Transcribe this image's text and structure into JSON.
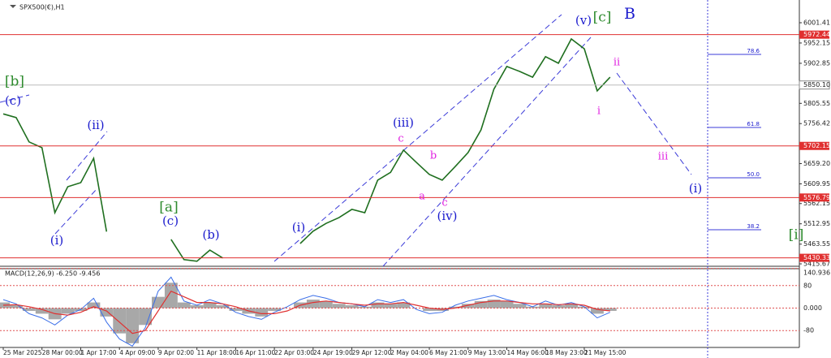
{
  "chart_data": [
    {
      "type": "line",
      "title": "SPX500(€),H1",
      "categories": [
        "25 Mar 2025",
        null,
        null,
        "28 Mar 00:00",
        null,
        null,
        "1 Apr 17:00",
        null,
        null,
        "4 Apr 09:00",
        null,
        null,
        "9 Apr 02:00",
        null,
        null,
        "11 Apr 18:00",
        null,
        null,
        "16 Apr 11:00",
        null,
        null,
        "22 Apr 03:00",
        null,
        null,
        "24 Apr 19:00",
        null,
        null,
        "29 Apr 12:00",
        null,
        null,
        "2 May 04:00",
        null,
        null,
        "6 May 21:00",
        null,
        null,
        "9 May 13:00",
        null,
        null,
        "14 May 06:00",
        null,
        null,
        "18 May 23:00",
        null,
        null,
        "21 May 15:00",
        null,
        null
      ],
      "values": [
        5780,
        5771,
        5712,
        5698,
        5540,
        5603,
        5613,
        5672,
        5494,
        null,
        null,
        null,
        null,
        5475,
        5426,
        5422,
        5449,
        5430,
        null,
        null,
        null,
        null,
        null,
        5465,
        5495,
        5514,
        5528,
        5548,
        5540,
        5619,
        5638,
        5692,
        5662,
        5633,
        5619,
        5652,
        5686,
        5741,
        5840,
        5895,
        5883,
        5869,
        5919,
        5903,
        5962,
        5938,
        5836,
        5869
      ],
      "color": "#1f6f1f",
      "ylim": [
        5409.8,
        6056.6
      ],
      "yticks": [
        6001.41,
        5952.15,
        5902.85,
        5805.55,
        5756.42,
        {
          "value": 5659.2,
          "label": "5659.20"
        },
        5609.95,
        5562.15,
        5512.95,
        5463.55,
        5415.67
      ],
      "levels": [
        5972.44,
        5702.15,
        5576.79,
        5430.33
      ],
      "level_color": "#e03030",
      "current": {
        "value": 5850.1,
        "label": "5850.10"
      },
      "fib_labels": [
        "78.6",
        "61.8",
        "50.0",
        "38.2"
      ],
      "annotations": [
        {
          "text": "[b]",
          "color": "#2e8b2e"
        },
        {
          "text": "(c)",
          "color": "#1a1acd"
        },
        {
          "text": "(ii)",
          "color": "#1a1acd"
        },
        {
          "text": "(i)",
          "color": "#1a1acd"
        },
        {
          "text": "[a]",
          "color": "#2e8b2e"
        },
        {
          "text": "(c)",
          "color": "#1a1acd"
        },
        {
          "text": "(b)",
          "color": "#1a1acd"
        },
        {
          "text": "(i)",
          "color": "#1a1acd"
        },
        {
          "text": "(iii)",
          "color": "#1a1acd"
        },
        {
          "text": "c",
          "color": "#e020e0"
        },
        {
          "text": "b",
          "color": "#e020e0"
        },
        {
          "text": "a",
          "color": "#e020e0"
        },
        {
          "text": "c",
          "color": "#e020e0"
        },
        {
          "text": "(iv)",
          "color": "#1a1acd"
        },
        {
          "text": "(v)",
          "color": "#1a1acd"
        },
        {
          "text": "[c]",
          "color": "#2e8b2e"
        },
        {
          "text": "B",
          "color": "#1a1acd"
        },
        {
          "text": "ii",
          "color": "#e020e0"
        },
        {
          "text": "i",
          "color": "#e020e0"
        },
        {
          "text": "iii",
          "color": "#e020e0"
        },
        {
          "text": "(i)",
          "color": "#1a1acd"
        },
        {
          "text": "[i]",
          "color": "#2e8b2e"
        }
      ]
    },
    {
      "type": "macd",
      "title": "MACD(12,26,9) -6.250 -9.456",
      "ylim": [
        -140,
        140
      ],
      "yticks": [
        140.936,
        80,
        {
          "value": 0,
          "label": "0.000"
        },
        -80
      ],
      "histogram": {
        "color": "#a8a8a8",
        "values": [
          20,
          10,
          -10,
          -20,
          -40,
          -20,
          -10,
          20,
          -30,
          -90,
          -125,
          -60,
          40,
          90,
          20,
          10,
          20,
          10,
          -10,
          -20,
          -30,
          -10,
          0,
          20,
          30,
          25,
          15,
          10,
          5,
          20,
          15,
          20,
          0,
          -10,
          -10,
          5,
          15,
          25,
          30,
          25,
          15,
          5,
          15,
          10,
          15,
          5,
          -20,
          -10
        ]
      },
      "series": [
        {
          "color": "#3a6ee8",
          "values": [
            30,
            15,
            -20,
            -35,
            -60,
            -25,
            -5,
            35,
            -50,
            -110,
            -135,
            -70,
            60,
            110,
            25,
            10,
            30,
            15,
            -15,
            -30,
            -40,
            -15,
            5,
            30,
            45,
            35,
            20,
            15,
            5,
            30,
            20,
            30,
            -5,
            -20,
            -15,
            10,
            25,
            35,
            45,
            30,
            20,
            5,
            25,
            10,
            20,
            5,
            -35,
            -15
          ]
        },
        {
          "color": "#e03030",
          "values": [
            10,
            12,
            5,
            -5,
            -20,
            -25,
            -15,
            5,
            -10,
            -50,
            -90,
            -80,
            -10,
            60,
            40,
            20,
            20,
            15,
            5,
            -10,
            -20,
            -20,
            -10,
            10,
            20,
            25,
            20,
            15,
            10,
            15,
            15,
            20,
            10,
            0,
            -5,
            0,
            10,
            20,
            25,
            25,
            20,
            15,
            15,
            12,
            15,
            10,
            -5,
            -10
          ]
        }
      ]
    }
  ]
}
